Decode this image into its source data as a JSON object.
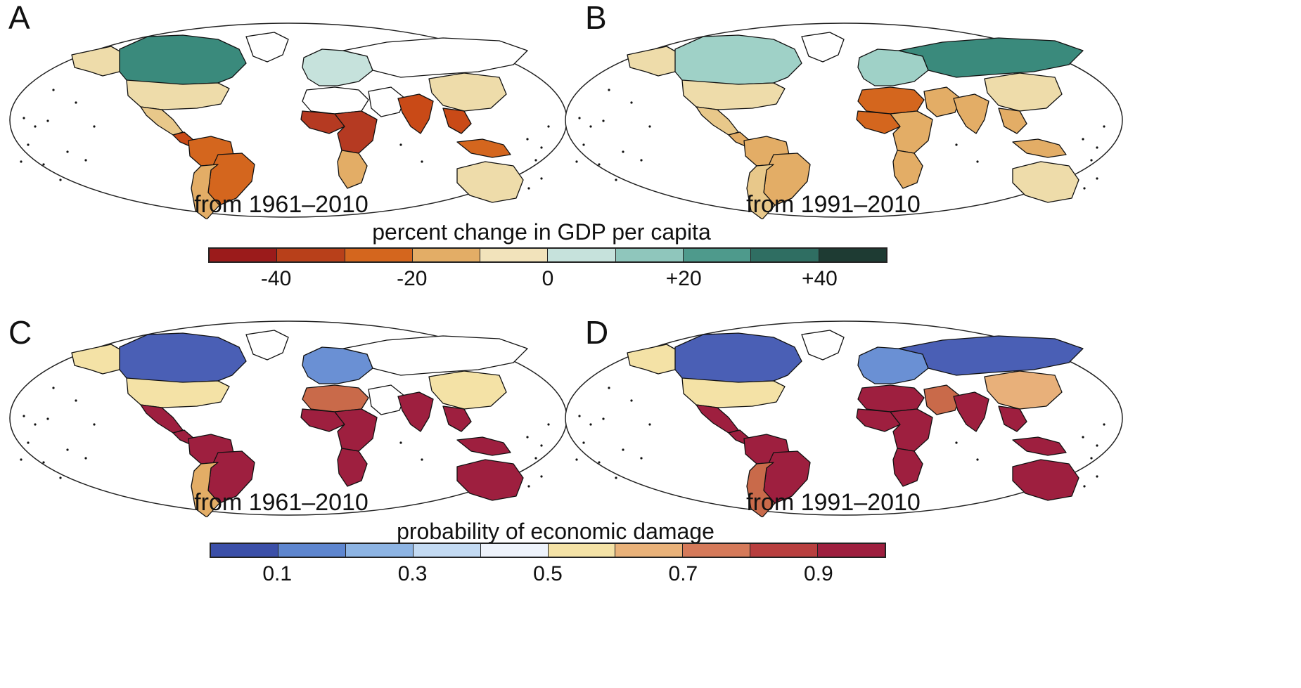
{
  "panels": [
    {
      "letter": "A",
      "period": "from 1961–2010",
      "scale": "gdp",
      "colors": {
        "na_north": "#3a8a7c",
        "usa": "#eedcaa",
        "alaska": "#eedcaa",
        "greenland": "#ffffff",
        "mexico": "#e8c88a",
        "central_am": "#c94a17",
        "sa_north": "#d4661e",
        "brazil": "#d4661e",
        "sa_south": "#e3ad66",
        "europe": "#c6e2dc",
        "nafrica": "#ffffff",
        "west_africa": "#b53a22",
        "central_africa": "#b53a22",
        "south_africa": "#e3ad66",
        "middle_east": "#ffffff",
        "russia": "#ffffff",
        "china": "#eedcaa",
        "india": "#c94a17",
        "se_asia": "#c94a17",
        "indonesia": "#d4661e",
        "australia": "#eedcaa"
      }
    },
    {
      "letter": "B",
      "period": "from 1991–2010",
      "scale": "gdp",
      "colors": {
        "na_north": "#9fd1c7",
        "usa": "#eedcaa",
        "alaska": "#eedcaa",
        "greenland": "#ffffff",
        "mexico": "#e8c88a",
        "central_am": "#e3ad66",
        "sa_north": "#e3ad66",
        "brazil": "#e3ad66",
        "sa_south": "#e8c88a",
        "europe": "#9fd1c7",
        "nafrica": "#d4661e",
        "west_africa": "#d4661e",
        "central_africa": "#e3ad66",
        "south_africa": "#e3ad66",
        "middle_east": "#e3ad66",
        "russia": "#3a8a7c",
        "china": "#eedcaa",
        "india": "#e3ad66",
        "se_asia": "#e3ad66",
        "indonesia": "#e3ad66",
        "australia": "#eedcaa"
      }
    },
    {
      "letter": "C",
      "period": "from 1961–2010",
      "scale": "prob",
      "colors": {
        "na_north": "#4a5fb5",
        "usa": "#f4e2a6",
        "alaska": "#f4e2a6",
        "greenland": "#ffffff",
        "mexico": "#9e1f3f",
        "central_am": "#9e1f3f",
        "sa_north": "#9e1f3f",
        "brazil": "#9e1f3f",
        "sa_south": "#e3ad66",
        "europe": "#6a90d4",
        "nafrica": "#c96a4a",
        "west_africa": "#9e1f3f",
        "central_africa": "#9e1f3f",
        "south_africa": "#9e1f3f",
        "middle_east": "#ffffff",
        "russia": "#ffffff",
        "china": "#f4e2a6",
        "india": "#9e1f3f",
        "se_asia": "#9e1f3f",
        "indonesia": "#9e1f3f",
        "australia": "#9e1f3f"
      }
    },
    {
      "letter": "D",
      "period": "from 1991–2010",
      "scale": "prob",
      "colors": {
        "na_north": "#4a5fb5",
        "usa": "#f4e2a6",
        "alaska": "#f4e2a6",
        "greenland": "#ffffff",
        "mexico": "#9e1f3f",
        "central_am": "#9e1f3f",
        "sa_north": "#9e1f3f",
        "brazil": "#9e1f3f",
        "sa_south": "#c96a4a",
        "europe": "#6a90d4",
        "nafrica": "#9e1f3f",
        "west_africa": "#9e1f3f",
        "central_africa": "#9e1f3f",
        "south_africa": "#9e1f3f",
        "middle_east": "#c96a4a",
        "russia": "#4a5fb5",
        "china": "#e8b07a",
        "india": "#9e1f3f",
        "se_asia": "#9e1f3f",
        "indonesia": "#9e1f3f",
        "australia": "#9e1f3f"
      }
    }
  ],
  "legends": {
    "gdp": {
      "title": "percent change in GDP per capita",
      "colors": [
        "#9b1b1b",
        "#b8401a",
        "#d4661e",
        "#e3ad66",
        "#f2e3bb",
        "#c6e2dc",
        "#8fc6bc",
        "#4e9a8c",
        "#2f6e62",
        "#1e3b33"
      ],
      "ticks": [
        "-40",
        "-20",
        "0",
        "+20",
        "+40"
      ]
    },
    "prob": {
      "title": "probability of economic damage",
      "colors": [
        "#3b4fa8",
        "#5e86cf",
        "#8db4e3",
        "#c3daf2",
        "#eef3fb",
        "#f4e2a6",
        "#e9b27a",
        "#d57a5a",
        "#b83f3f",
        "#9e1f3f"
      ],
      "ticks": [
        "0.1",
        "0.3",
        "0.5",
        "0.7",
        "0.9"
      ]
    }
  }
}
